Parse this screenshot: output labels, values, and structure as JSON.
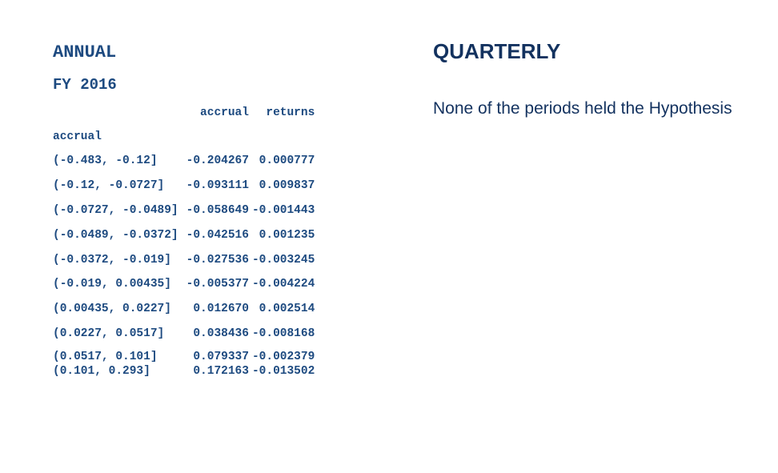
{
  "annual": {
    "title": "ANNUAL",
    "fiscal_year": "FY 2016",
    "table": {
      "columns": [
        "accrual",
        "returns"
      ],
      "index_name": "accrual",
      "rows": [
        {
          "bin": "(-0.483, -0.12]",
          "accrual": "-0.204267",
          "returns": "0.000777"
        },
        {
          "bin": "(-0.12, -0.0727]",
          "accrual": "-0.093111",
          "returns": "0.009837"
        },
        {
          "bin": "(-0.0727, -0.0489]",
          "accrual": "-0.058649",
          "returns": "-0.001443"
        },
        {
          "bin": "(-0.0489, -0.0372]",
          "accrual": "-0.042516",
          "returns": "0.001235"
        },
        {
          "bin": "(-0.0372, -0.019]",
          "accrual": "-0.027536",
          "returns": "-0.003245"
        },
        {
          "bin": "(-0.019, 0.00435]",
          "accrual": "-0.005377",
          "returns": "-0.004224"
        },
        {
          "bin": "(0.00435, 0.0227]",
          "accrual": "0.012670",
          "returns": "0.002514"
        },
        {
          "bin": "(0.0227, 0.0517]",
          "accrual": "0.038436",
          "returns": "-0.008168"
        },
        {
          "bin": "(0.0517, 0.101]",
          "accrual": "0.079337",
          "returns": "-0.002379"
        },
        {
          "bin": "(0.101, 0.293]",
          "accrual": "0.172163",
          "returns": "-0.013502"
        }
      ]
    }
  },
  "quarterly": {
    "title": "QUARTERLY",
    "note": "None of the periods held the Hypothesis"
  }
}
